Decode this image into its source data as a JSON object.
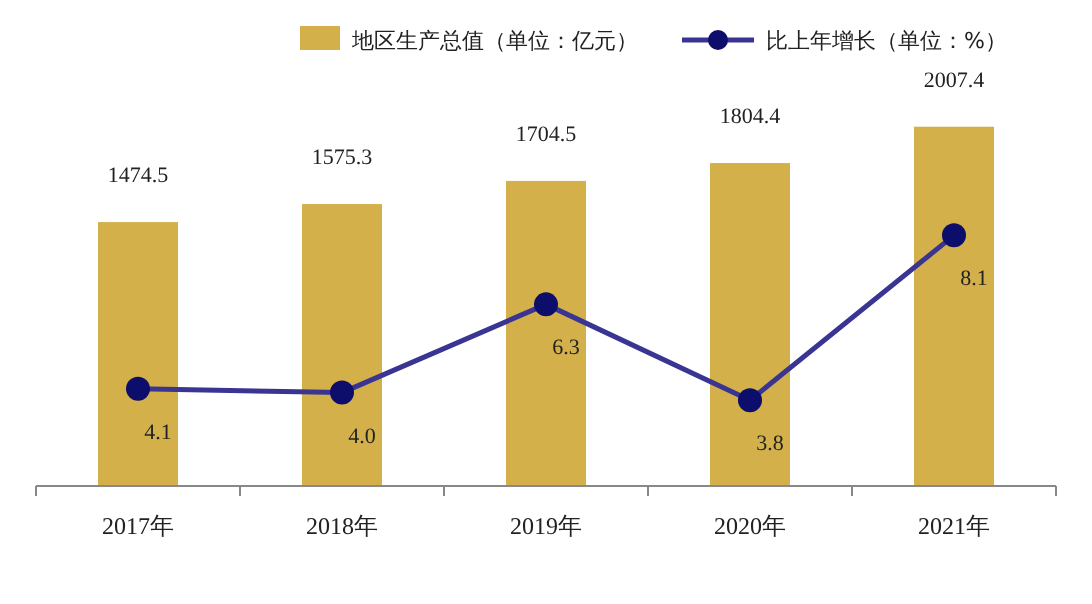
{
  "chart_data": {
    "type": "bar",
    "categories": [
      "2017年",
      "2018年",
      "2019年",
      "2020年",
      "2021年"
    ],
    "series": [
      {
        "name": "地区生产总值（单位：亿元）",
        "color": "#d4b04a",
        "values": [
          1474.5,
          1575.3,
          1704.5,
          1804.4,
          2007.4
        ],
        "value_labels": [
          "1474.5",
          "1575.3",
          "1704.5",
          "1804.4",
          "2007.4"
        ]
      },
      {
        "name": "比上年增长（单位：%）",
        "type": "line",
        "axis": "y2",
        "color": "#3a3592",
        "marker": "circle",
        "values": [
          4.1,
          4.0,
          6.3,
          3.8,
          8.1
        ],
        "value_labels": [
          "4.1",
          "4.0",
          "6.3",
          "3.8",
          "8.1"
        ]
      }
    ],
    "legend": "top"
  }
}
